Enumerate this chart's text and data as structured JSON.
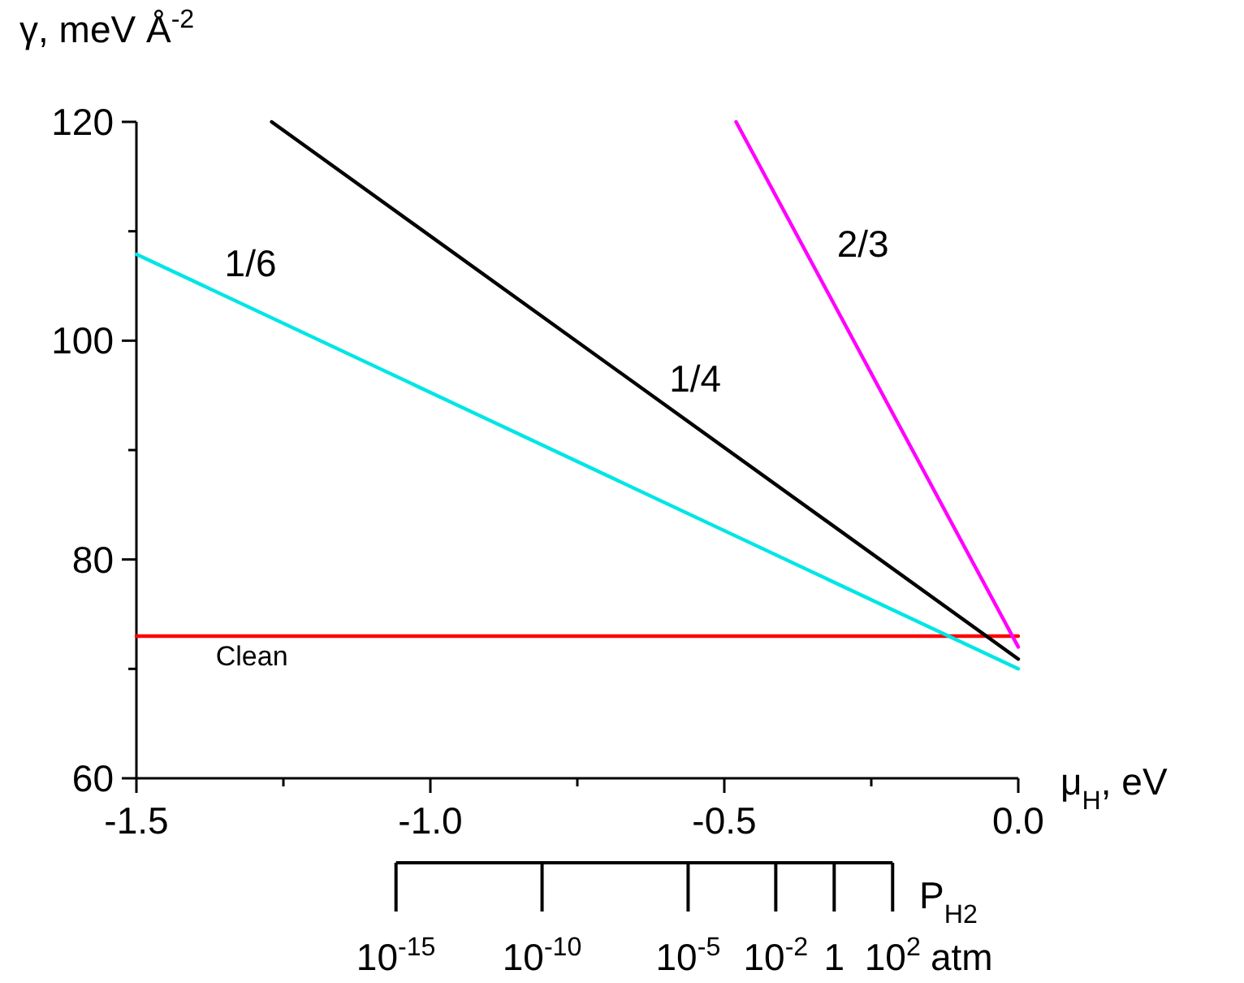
{
  "chart_data": {
    "type": "line",
    "ylabel": "γ, meV Å$^{-2}$",
    "xlabel": "μ$_{H}$, eV",
    "x2label": "P$_{H2}$",
    "xlim": [
      -1.5,
      0
    ],
    "xticks": [
      -1.5,
      {
        "value": -1.25,
        "label": null
      },
      {
        "value": -1,
        "label": "-1.0"
      },
      {
        "value": -0.75,
        "label": null
      },
      -0.5,
      {
        "value": -0.25,
        "label": null
      },
      {
        "value": 0,
        "label": "0.0"
      }
    ],
    "ylim": [
      60,
      120
    ],
    "yticks": [
      60,
      {
        "value": 70,
        "label": null
      },
      80,
      {
        "value": 90,
        "label": null
      },
      100,
      {
        "value": 110,
        "label": null
      },
      120
    ],
    "x2lim": [
      1.3e-24,
      2000000.0
    ],
    "log": "x2",
    "x2ticks": [
      {
        "value": 1e-15,
        "label": "10$^{-15}$"
      },
      {
        "value": 1e-10,
        "label": "10$^{-10}$"
      },
      {
        "value": 1e-05,
        "label": "10$^{-5}$"
      },
      {
        "value": 0.01,
        "label": "10$^{-2}$"
      },
      1,
      {
        "value": 100,
        "label": "10$^{2}$"
      }
    ],
    "annotations": [
      "atm"
    ],
    "grid": false,
    "legend": false,
    "marker": "none",
    "line_style": "solid",
    "series": [
      {
        "name": "Clean",
        "color": "#ff0000",
        "x": [
          -1.5,
          0
        ],
        "values": [
          73,
          73
        ]
      },
      {
        "name": "1/6",
        "color": "#00e5e5",
        "x": [
          -1.5,
          0
        ],
        "values": [
          107.9,
          70
        ]
      },
      {
        "name": "1/4",
        "color": "#000000",
        "x": [
          -1.27,
          0
        ],
        "values": [
          120,
          70.9
        ]
      },
      {
        "name": "2/3",
        "color": "#ff00ff",
        "x": [
          -0.48,
          0
        ],
        "values": [
          120,
          72
        ]
      }
    ]
  }
}
